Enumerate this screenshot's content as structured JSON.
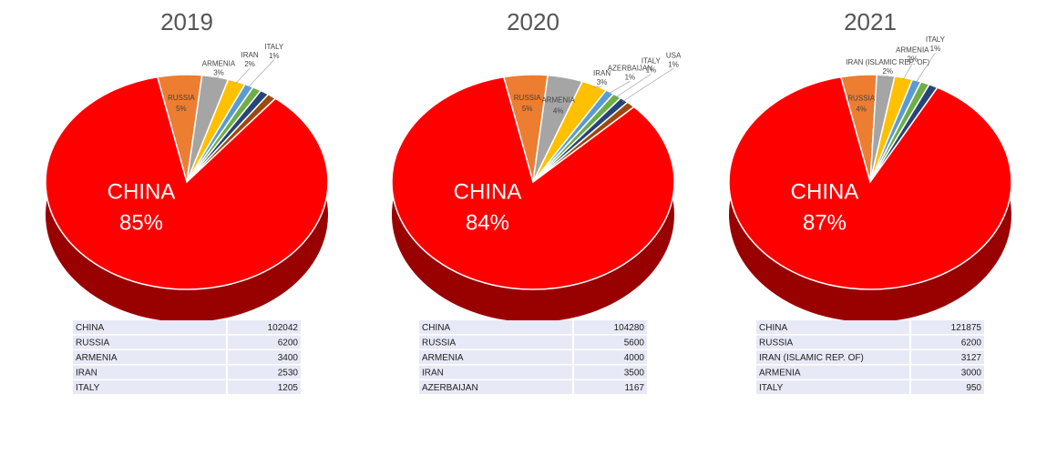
{
  "chart_data": [
    {
      "type": "pie",
      "title": "2019",
      "categories": [
        "RUSSIA",
        "ARMENIA",
        "IRAN",
        "ITALY",
        null,
        null,
        null,
        "CHINA"
      ],
      "values": [
        5,
        3,
        2,
        1,
        1,
        1,
        1,
        85
      ],
      "value_labels": [
        "5%",
        "3%",
        "2%",
        "1%",
        null,
        null,
        null,
        "85%"
      ],
      "colors": [
        "#ed7d31",
        "#a5a5a5",
        "#ffc000",
        "#5b9bd5",
        "#70ad47",
        "#264478",
        "#9e480e",
        "#ff0000"
      ],
      "table": {
        "rows": [
          [
            "CHINA",
            102042
          ],
          [
            "RUSSIA",
            6200
          ],
          [
            "ARMENIA",
            3400
          ],
          [
            "IRAN",
            2530
          ],
          [
            "ITALY",
            1205
          ]
        ]
      }
    },
    {
      "type": "pie",
      "title": "2020",
      "categories": [
        "RUSSIA",
        "ARMENIA",
        "IRAN",
        "AZERBAIJAN",
        "ITALY",
        "USA",
        null,
        "CHINA"
      ],
      "values": [
        5,
        4,
        3,
        1,
        1,
        1,
        1,
        84
      ],
      "value_labels": [
        "5%",
        "4%",
        "3%",
        "1%",
        "1%",
        "1%",
        null,
        "84%"
      ],
      "colors": [
        "#ed7d31",
        "#a5a5a5",
        "#ffc000",
        "#5b9bd5",
        "#70ad47",
        "#264478",
        "#9e480e",
        "#ff0000"
      ],
      "table": {
        "rows": [
          [
            "CHINA",
            104280
          ],
          [
            "RUSSIA",
            5600
          ],
          [
            "ARMENIA",
            4000
          ],
          [
            "IRAN",
            3500
          ],
          [
            "AZERBAIJAN",
            1167
          ]
        ]
      }
    },
    {
      "type": "pie",
      "title": "2021",
      "categories": [
        "RUSSIA",
        "IRAN (ISLAMIC REP. OF)",
        "ARMENIA",
        "ITALY",
        null,
        null,
        "CHINA"
      ],
      "values": [
        4,
        2,
        2,
        1,
        1,
        1,
        87
      ],
      "value_labels": [
        "4%",
        "2%",
        "2%",
        "1%",
        null,
        null,
        "87%"
      ],
      "colors": [
        "#ed7d31",
        "#a5a5a5",
        "#ffc000",
        "#5b9bd5",
        "#70ad47",
        "#264478",
        "#ff0000"
      ],
      "table": {
        "rows": [
          [
            "CHINA",
            121875
          ],
          [
            "RUSSIA",
            6200
          ],
          [
            "IRAN (ISLAMIC REP. OF)",
            3127
          ],
          [
            "ARMENIA",
            3000
          ],
          [
            "ITALY",
            950
          ]
        ]
      }
    }
  ]
}
